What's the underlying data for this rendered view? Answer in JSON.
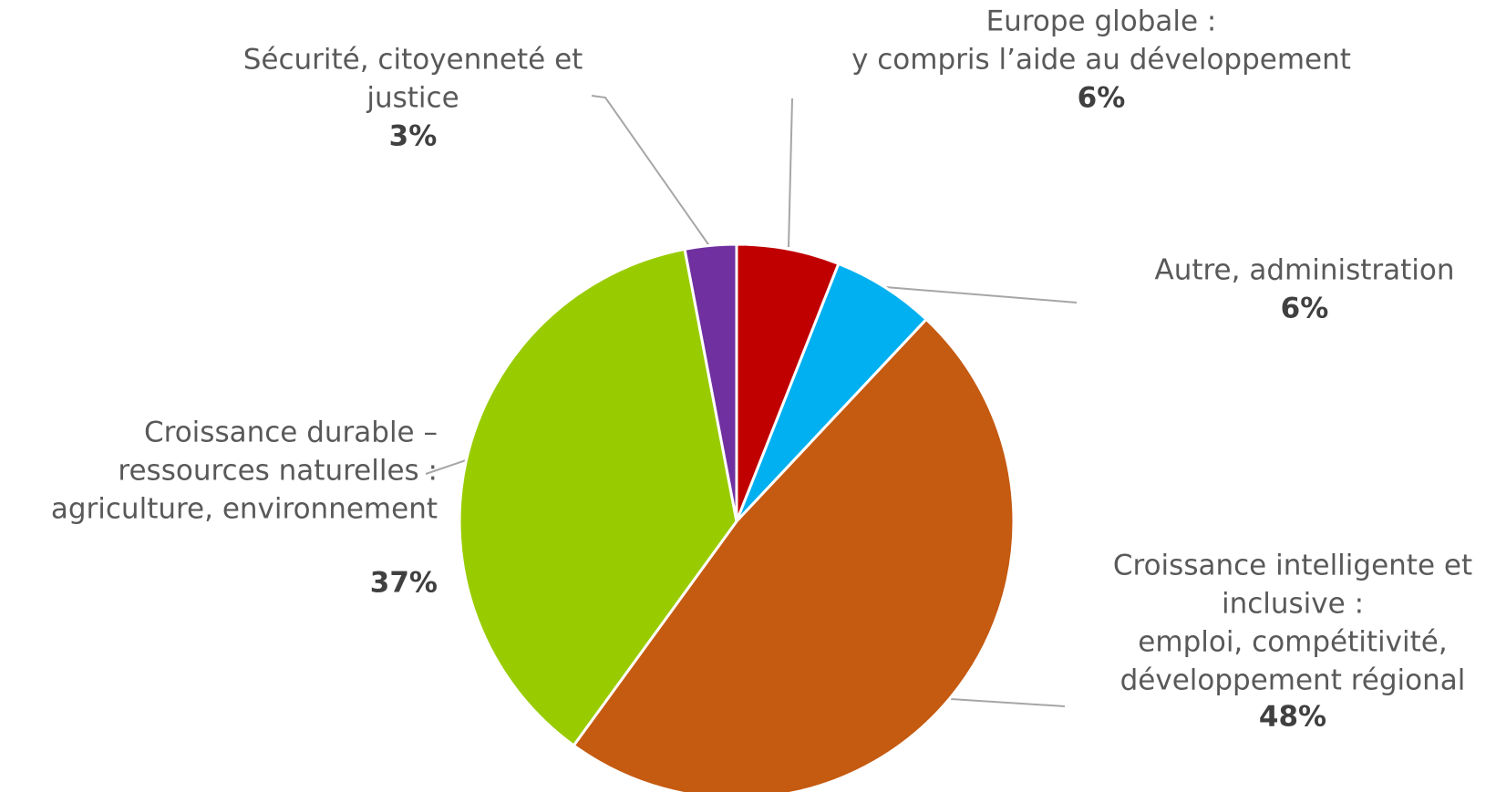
{
  "chart_data": {
    "type": "pie",
    "categories": [
      [
        "Europe globale :",
        "y compris l’aide au développement"
      ],
      [
        "Autre, administration"
      ],
      [
        "Croissance intelligente et",
        "inclusive :",
        "emploi, compétitivité,",
        "développement régional"
      ],
      [
        "Croissance durable –",
        "ressources naturelles :",
        "agriculture, environnement"
      ],
      [
        "Sécurité, citoyenneté et",
        "justice"
      ]
    ],
    "values": [
      6,
      6,
      48,
      37,
      3
    ],
    "value_labels": [
      "6%",
      "6%",
      "48%",
      "37%",
      "3%"
    ],
    "colors": [
      "#c00000",
      "#00b0f0",
      "#c55a11",
      "#99cc00",
      "#7030a0"
    ]
  }
}
